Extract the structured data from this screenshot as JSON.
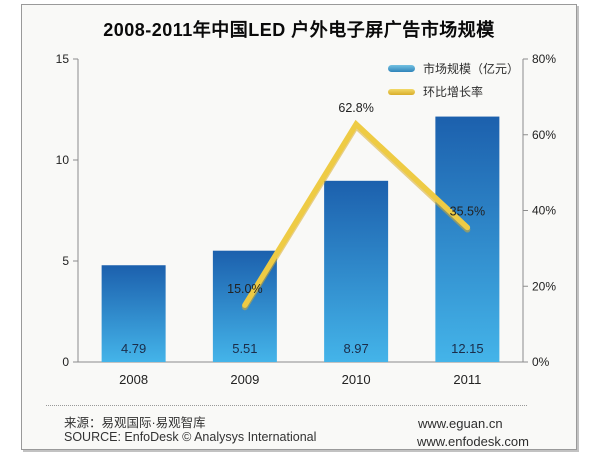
{
  "title": "2008-2011年中国LED 户外电子屏广告市场规模",
  "legend": {
    "items": [
      {
        "label": "市场规模（亿元）",
        "marker": "bar-marker-icon"
      },
      {
        "label": "环比增长率",
        "marker": "line-marker-icon"
      }
    ]
  },
  "chart_data": {
    "type": "bar+line-combo",
    "categories": [
      "2008",
      "2009",
      "2010",
      "2011"
    ],
    "series": [
      {
        "name": "市场规模（亿元）",
        "type": "bar",
        "axis": "left",
        "values": [
          4.79,
          5.51,
          8.97,
          12.15
        ],
        "labels": [
          "4.79",
          "5.51",
          "8.97",
          "12.15"
        ]
      },
      {
        "name": "环比增长率",
        "type": "line",
        "axis": "right",
        "values": [
          null,
          15.0,
          62.8,
          35.5
        ],
        "labels": [
          null,
          "15.0%",
          "62.8%",
          "35.5%"
        ]
      }
    ],
    "left_axis": {
      "min": 0,
      "max": 15,
      "ticks": [
        "0",
        "5",
        "10",
        "15"
      ]
    },
    "right_axis": {
      "min": 0,
      "max": 80,
      "ticks": [
        "0%",
        "20%",
        "40%",
        "60%",
        "80%"
      ]
    },
    "grid": false,
    "legend_position": "top-right"
  },
  "colors": {
    "bar_top": "#1c60ad",
    "bar_bottom": "#44b4e9",
    "line": "#eecb44",
    "line_shadow": "#d8ab28",
    "axis": "#8c8c8c",
    "panel_bg": "#f9f9f7",
    "bar_value_text": "#1b2d4a"
  },
  "footer": {
    "source_cn": "来源：易观国际·易观智库",
    "source_en": "SOURCE: EnfoDesk © Analysys International",
    "url_1": "www.eguan.cn",
    "url_2": "www.enfodesk.com"
  }
}
